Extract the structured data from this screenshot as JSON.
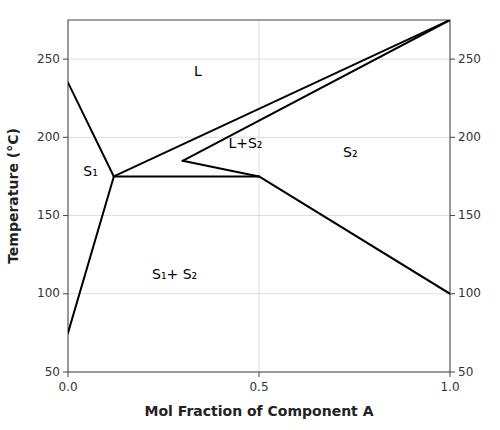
{
  "chart_data": {
    "type": "line",
    "xlabel": "Mol Fraction of Component A",
    "ylabel": "Temperature (°C)",
    "xlim": [
      0,
      1.0
    ],
    "ylim": [
      50,
      275
    ],
    "xticks": [
      {
        "value": 0,
        "label": "0.0"
      },
      0.5,
      {
        "value": 1.0,
        "label": "1.0"
      }
    ],
    "yticks": [
      50,
      100,
      150,
      200,
      250
    ],
    "y2lim": [
      50,
      275
    ],
    "y2ticks": [
      50,
      100,
      150,
      200,
      250
    ],
    "grid": true,
    "color": "#000000",
    "series": [
      {
        "x": [
          0,
          0.12
        ],
        "values": [
          235,
          175
        ]
      },
      {
        "x": [
          0,
          0.12
        ],
        "values": [
          75,
          175
        ]
      },
      {
        "x": [
          0.12,
          0.5
        ],
        "values": [
          175,
          175
        ]
      },
      {
        "x": [
          0.12,
          1.0
        ],
        "values": [
          175,
          275
        ]
      },
      {
        "x": [
          0.3,
          1.0
        ],
        "values": [
          185,
          275
        ]
      },
      {
        "x": [
          0.3,
          0.5
        ],
        "values": [
          185,
          175
        ]
      },
      {
        "x": [
          0.5,
          1.0
        ],
        "values": [
          175,
          100
        ]
      }
    ],
    "annotations": [
      {
        "text": "L",
        "x": 0.33,
        "y": 242
      },
      {
        "text": "L+S₂",
        "x": 0.42,
        "y": 196
      },
      {
        "text": "S₁",
        "x": 0.04,
        "y": 178
      },
      {
        "text": "S₂",
        "x": 0.72,
        "y": 190
      },
      {
        "text": "S₁+ S₂",
        "x": 0.22,
        "y": 112
      }
    ]
  }
}
